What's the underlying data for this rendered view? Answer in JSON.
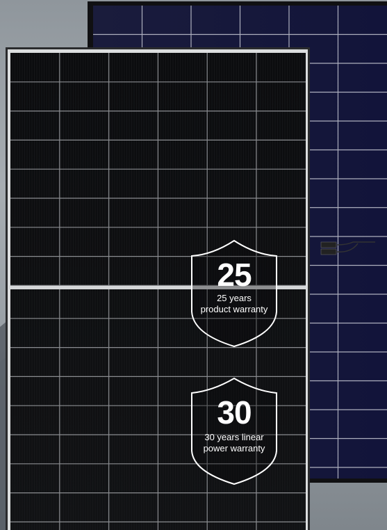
{
  "badges": [
    {
      "number": "25",
      "line1": "25 years",
      "line2": "product warranty"
    },
    {
      "number": "30",
      "line1": "30 years linear",
      "line2": "power warranty"
    }
  ],
  "colors": {
    "background": "#9aa1a7",
    "front_panel_cells": "#0c0d0f",
    "back_panel_cells": "#14163a",
    "frame": "#d8dadc",
    "badge_outline": "#ffffff"
  }
}
